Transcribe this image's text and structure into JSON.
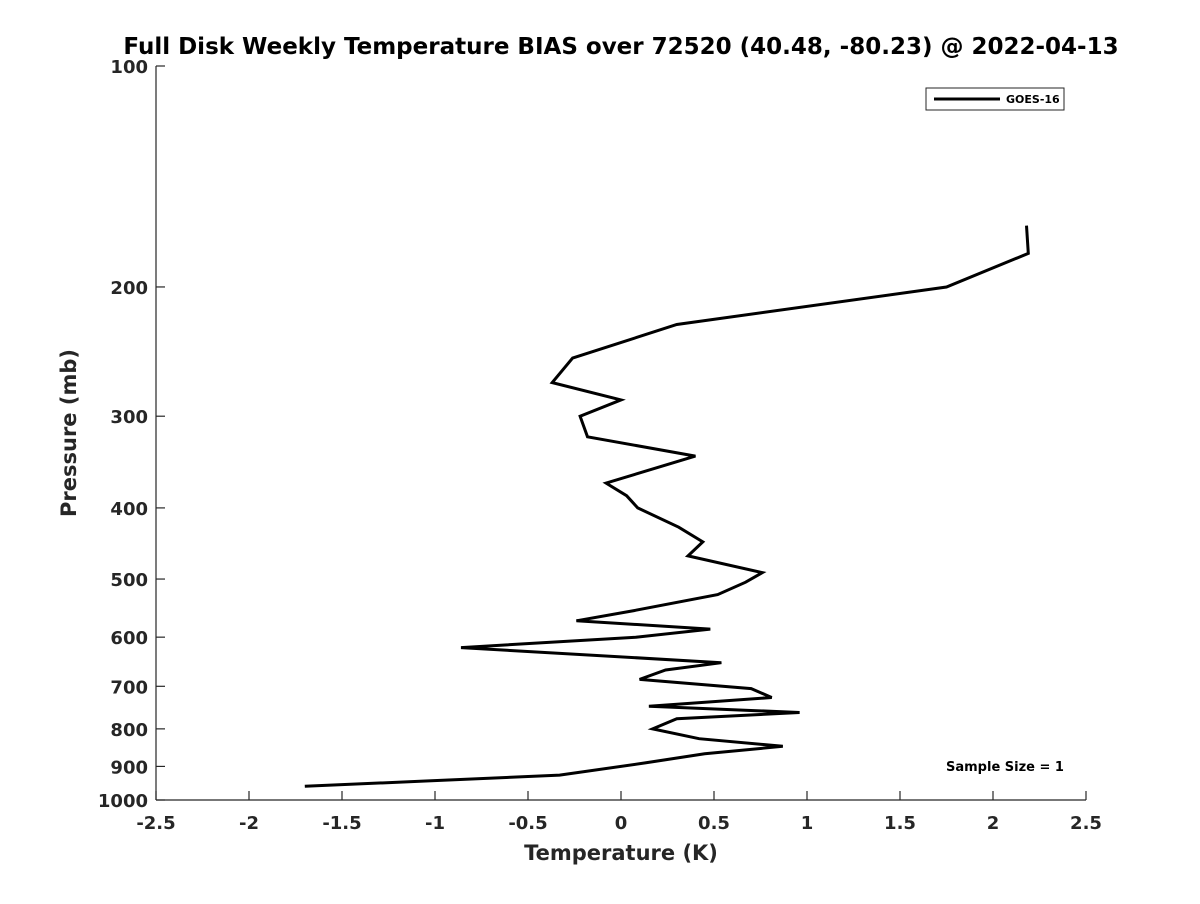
{
  "chart_data": {
    "type": "line",
    "title": "Full Disk Weekly Temperature BIAS over 72520 (40.48, -80.23) @ 2022-04-13",
    "xlabel": "Temperature (K)",
    "ylabel": "Pressure (mb)",
    "xlim": [
      -2.5,
      2.5
    ],
    "ylim": [
      100,
      1000
    ],
    "y_scale": "log",
    "y_reversed": true,
    "x_ticks": [
      -2.5,
      -2,
      -1.5,
      -1,
      -0.5,
      0,
      0.5,
      1,
      1.5,
      2,
      2.5
    ],
    "x_tick_labels": [
      "-2.5",
      "-2",
      "-1.5",
      "-1",
      "-0.5",
      "0",
      "0.5",
      "1",
      "1.5",
      "2",
      "2.5"
    ],
    "y_ticks": [
      100,
      200,
      300,
      400,
      500,
      600,
      700,
      800,
      900,
      1000
    ],
    "y_tick_labels": [
      "100",
      "200",
      "300",
      "400",
      "500",
      "600",
      "700",
      "800",
      "900",
      "1000"
    ],
    "grid": false,
    "legend_position": "top-right",
    "line_color": "#000000",
    "series": [
      {
        "name": "GOES-16",
        "points": [
          {
            "t": 2.18,
            "p": 165
          },
          {
            "t": 2.19,
            "p": 180
          },
          {
            "t": 1.75,
            "p": 200
          },
          {
            "t": 0.3,
            "p": 225
          },
          {
            "t": -0.26,
            "p": 250
          },
          {
            "t": -0.37,
            "p": 270
          },
          {
            "t": 0.0,
            "p": 285
          },
          {
            "t": -0.22,
            "p": 300
          },
          {
            "t": -0.18,
            "p": 320
          },
          {
            "t": 0.4,
            "p": 340
          },
          {
            "t": -0.08,
            "p": 370
          },
          {
            "t": 0.03,
            "p": 385
          },
          {
            "t": 0.09,
            "p": 400
          },
          {
            "t": 0.31,
            "p": 425
          },
          {
            "t": 0.44,
            "p": 445
          },
          {
            "t": 0.36,
            "p": 465
          },
          {
            "t": 0.76,
            "p": 490
          },
          {
            "t": 0.67,
            "p": 505
          },
          {
            "t": 0.52,
            "p": 525
          },
          {
            "t": 0.07,
            "p": 552
          },
          {
            "t": -0.24,
            "p": 570
          },
          {
            "t": 0.48,
            "p": 585
          },
          {
            "t": 0.08,
            "p": 600
          },
          {
            "t": -0.86,
            "p": 620
          },
          {
            "t": 0.54,
            "p": 650
          },
          {
            "t": 0.24,
            "p": 665
          },
          {
            "t": 0.1,
            "p": 685
          },
          {
            "t": 0.7,
            "p": 705
          },
          {
            "t": 0.81,
            "p": 725
          },
          {
            "t": 0.15,
            "p": 745
          },
          {
            "t": 0.96,
            "p": 760
          },
          {
            "t": 0.3,
            "p": 775
          },
          {
            "t": 0.17,
            "p": 800
          },
          {
            "t": 0.42,
            "p": 825
          },
          {
            "t": 0.87,
            "p": 845
          },
          {
            "t": 0.45,
            "p": 865
          },
          {
            "t": 0.13,
            "p": 890
          },
          {
            "t": -0.33,
            "p": 925
          },
          {
            "t": -1.05,
            "p": 942
          },
          {
            "t": -1.7,
            "p": 958
          }
        ]
      }
    ],
    "annotation": "Sample Size = 1"
  }
}
